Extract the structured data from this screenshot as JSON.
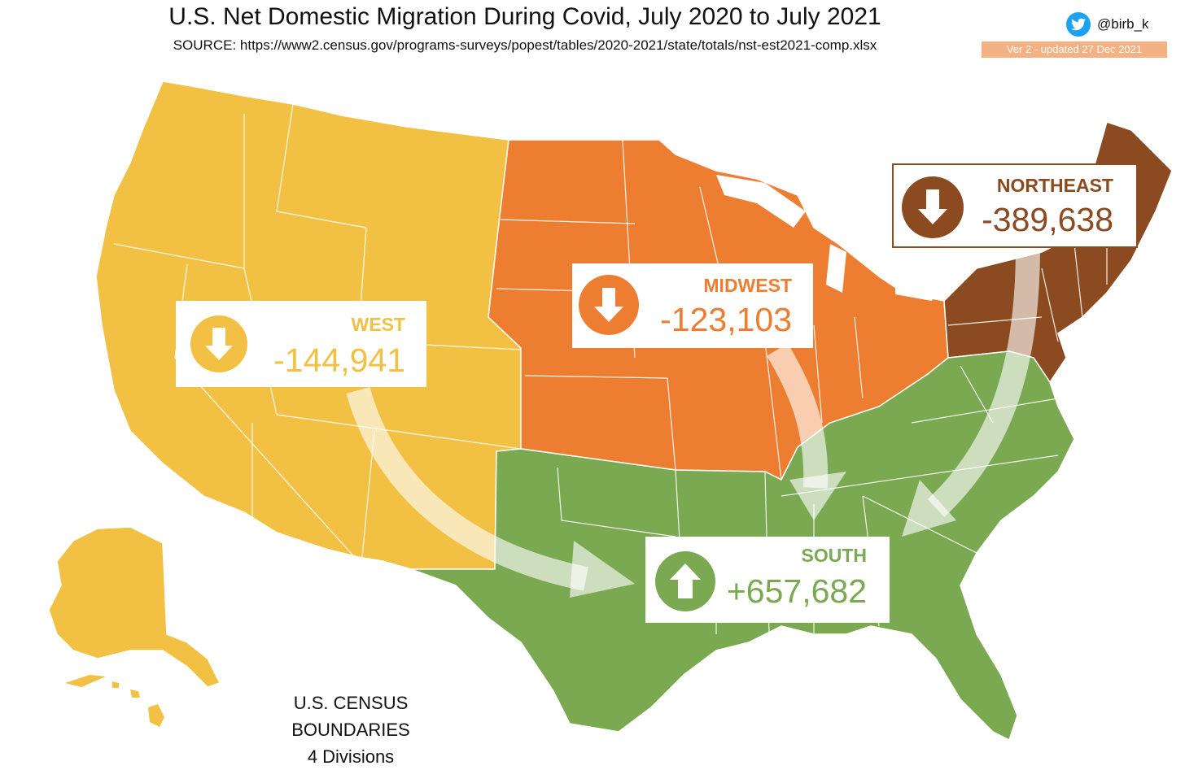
{
  "header": {
    "title": "U.S. Net Domestic Migration During Covid, July 2020 to July 2021",
    "source": "SOURCE: https://www2.census.gov/programs-surveys/popest/tables/2020-2021/state/totals/nst-est2021-comp.xlsx",
    "twitter_handle": "@birb_k",
    "version": "Ver 2 - updated 27 Dec 2021"
  },
  "regions": {
    "west": {
      "name": "WEST",
      "value": "-144,941",
      "direction": "down",
      "color": "#f2c143"
    },
    "midwest": {
      "name": "MIDWEST",
      "value": "-123,103",
      "direction": "down",
      "color": "#ed7d31"
    },
    "northeast": {
      "name": "NORTHEAST",
      "value": "-389,638",
      "direction": "down",
      "color": "#8b4a1f"
    },
    "south": {
      "name": "SOUTH",
      "value": "+657,682",
      "direction": "up",
      "color": "#7aa952"
    }
  },
  "footer": {
    "line1": "U.S. CENSUS BOUNDARIES",
    "line2": "4 Divisions"
  },
  "icons": [
    "twitter-bird-icon",
    "arrow-down-icon",
    "arrow-up-icon"
  ]
}
